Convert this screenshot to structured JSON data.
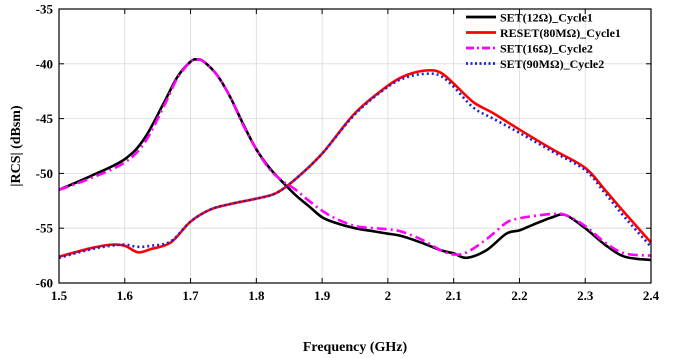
{
  "chart_data": {
    "type": "line",
    "title": "",
    "xlabel": "Frequency (GHz)",
    "ylabel": "|RCS| (dBsm)",
    "xlim": [
      1.5,
      2.4
    ],
    "ylim": [
      -60,
      -35
    ],
    "xticks": [
      1.5,
      1.6,
      1.7,
      1.8,
      1.9,
      2,
      2.1,
      2.2,
      2.3,
      2.4
    ],
    "xtick_labels": [
      "1.5",
      "1.6",
      "1.7",
      "1.8",
      "1.9",
      "2",
      "2.1",
      "2.2",
      "2.3",
      "2.4"
    ],
    "yticks": [
      -35,
      -40,
      -45,
      -50,
      -55,
      -60
    ],
    "ytick_labels": [
      "-35",
      "-40",
      "-45",
      "-50",
      "-55",
      "-60"
    ],
    "grid": true,
    "legend_position": "top-right",
    "series": [
      {
        "name": "SET(12Ω)_Cycle1",
        "color": "#000000",
        "dash": "solid",
        "x": [
          1.5,
          1.55,
          1.6,
          1.63,
          1.66,
          1.68,
          1.7,
          1.71,
          1.72,
          1.74,
          1.76,
          1.78,
          1.8,
          1.82,
          1.84,
          1.86,
          1.88,
          1.9,
          1.92,
          1.95,
          1.98,
          2.0,
          2.02,
          2.05,
          2.08,
          2.1,
          2.12,
          2.15,
          2.18,
          2.2,
          2.22,
          2.25,
          2.27,
          2.3,
          2.33,
          2.36,
          2.4
        ],
        "y": [
          -51.5,
          -50.2,
          -48.7,
          -46.8,
          -43.5,
          -41.2,
          -39.8,
          -39.6,
          -39.8,
          -41.0,
          -43.0,
          -45.5,
          -47.8,
          -49.5,
          -50.8,
          -52.0,
          -53.0,
          -54.0,
          -54.5,
          -55.0,
          -55.3,
          -55.5,
          -55.7,
          -56.3,
          -57.0,
          -57.3,
          -57.7,
          -57.0,
          -55.5,
          -55.2,
          -54.7,
          -54.0,
          -53.8,
          -55.0,
          -56.5,
          -57.6,
          -57.9
        ]
      },
      {
        "name": "RESET(80MΩ)_Cycle1",
        "color": "#ff0000",
        "dash": "solid",
        "x": [
          1.5,
          1.55,
          1.58,
          1.6,
          1.62,
          1.64,
          1.67,
          1.7,
          1.73,
          1.76,
          1.8,
          1.83,
          1.86,
          1.9,
          1.95,
          2.0,
          2.03,
          2.06,
          2.08,
          2.1,
          2.13,
          2.16,
          2.2,
          2.25,
          2.3,
          2.33,
          2.36,
          2.4
        ],
        "y": [
          -57.6,
          -56.8,
          -56.5,
          -56.6,
          -57.2,
          -56.9,
          -56.3,
          -54.4,
          -53.3,
          -52.8,
          -52.3,
          -51.8,
          -50.5,
          -48.2,
          -44.5,
          -42.0,
          -41.0,
          -40.6,
          -40.8,
          -41.8,
          -43.5,
          -44.5,
          -46.0,
          -47.8,
          -49.5,
          -51.5,
          -53.6,
          -56.3
        ]
      },
      {
        "name": "SET(16Ω)_Cycle2",
        "color": "#ff00ff",
        "dash": "dashdot",
        "x": [
          1.5,
          1.55,
          1.6,
          1.63,
          1.66,
          1.68,
          1.7,
          1.71,
          1.72,
          1.74,
          1.76,
          1.78,
          1.8,
          1.82,
          1.84,
          1.86,
          1.88,
          1.9,
          1.92,
          1.95,
          1.98,
          2.0,
          2.02,
          2.05,
          2.08,
          2.1,
          2.12,
          2.15,
          2.18,
          2.2,
          2.22,
          2.25,
          2.27,
          2.3,
          2.33,
          2.36,
          2.4
        ],
        "y": [
          -51.5,
          -50.4,
          -49.0,
          -47.2,
          -43.8,
          -41.3,
          -39.8,
          -39.6,
          -39.8,
          -41.0,
          -43.0,
          -45.6,
          -47.8,
          -49.6,
          -50.7,
          -51.5,
          -52.5,
          -53.4,
          -54.1,
          -54.8,
          -55.0,
          -55.1,
          -55.3,
          -56.0,
          -57.0,
          -57.4,
          -57.2,
          -56.0,
          -54.5,
          -54.1,
          -53.9,
          -53.7,
          -53.8,
          -54.8,
          -56.3,
          -57.3,
          -57.5
        ]
      },
      {
        "name": "SET(90MΩ)_Cycle2",
        "color": "#2020d0",
        "dash": "dotted",
        "x": [
          1.5,
          1.55,
          1.58,
          1.6,
          1.62,
          1.64,
          1.67,
          1.7,
          1.73,
          1.76,
          1.8,
          1.83,
          1.86,
          1.9,
          1.95,
          2.0,
          2.03,
          2.06,
          2.08,
          2.1,
          2.13,
          2.16,
          2.2,
          2.25,
          2.3,
          2.33,
          2.36,
          2.4
        ],
        "y": [
          -57.7,
          -56.9,
          -56.6,
          -56.5,
          -56.7,
          -56.6,
          -56.2,
          -54.4,
          -53.3,
          -52.8,
          -52.3,
          -51.8,
          -50.5,
          -48.2,
          -44.6,
          -42.1,
          -41.2,
          -40.9,
          -41.1,
          -42.1,
          -44.0,
          -45.0,
          -46.3,
          -48.0,
          -49.7,
          -51.8,
          -54.0,
          -56.7
        ]
      }
    ]
  }
}
